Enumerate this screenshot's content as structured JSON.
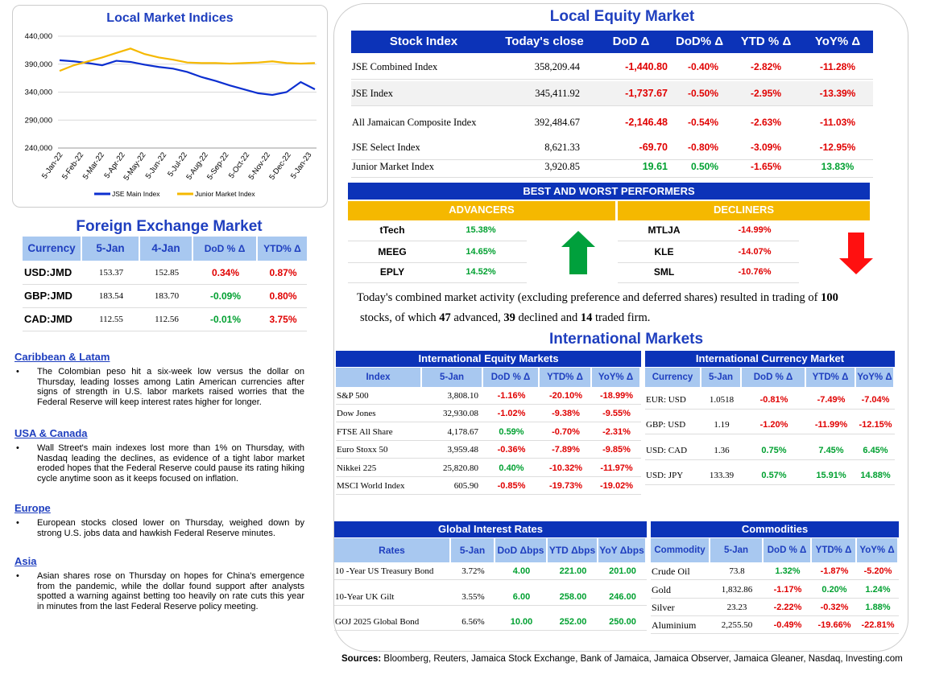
{
  "chart_data": {
    "type": "line",
    "title": "Local Market Indices",
    "x_ticks": [
      "5-Jan-22",
      "5-Feb-22",
      "5-Mar-22",
      "5-Apr-22",
      "5-May-22",
      "5-Jun-22",
      "5-Jul-22",
      "5-Aug-22",
      "5-Sep-22",
      "5-Oct-22",
      "5-Nov-22",
      "5-Dec-22",
      "5-Jan-23"
    ],
    "y_ticks": [
      "440,000",
      "390,000",
      "340,000",
      "290,000",
      "240,000"
    ],
    "ylim": [
      240000,
      440000
    ],
    "grid": true,
    "legend_position": "bottom",
    "series": [
      {
        "name": "JSE Main Index",
        "color": "#0c2fd0",
        "values": [
          397000,
          395000,
          392000,
          388000,
          396000,
          394000,
          389000,
          385000,
          382000,
          376000,
          367000,
          360000,
          352000,
          345000,
          338000,
          335000,
          340000,
          358000,
          345000
        ]
      },
      {
        "name": "Junior Market Index",
        "color": "#f5b800",
        "values": [
          378000,
          388000,
          395000,
          402000,
          410000,
          418000,
          408000,
          402000,
          398000,
          393000,
          392000,
          392000,
          391000,
          392000,
          393000,
          395000,
          392000,
          391000,
          392000
        ]
      }
    ]
  },
  "fx": {
    "title": "Foreign Exchange Market",
    "headers": [
      "Currency",
      "5-Jan",
      "4-Jan",
      "DoD % Δ",
      "YTD% Δ"
    ],
    "rows": [
      {
        "c": "USD:JMD",
        "a": "153.37",
        "b": "152.85",
        "d": "0.34%",
        "y": "0.87%",
        "dc": "red",
        "yc": "red"
      },
      {
        "c": "GBP:JMD",
        "a": "183.54",
        "b": "183.70",
        "d": "-0.09%",
        "y": "0.80%",
        "dc": "green",
        "yc": "red"
      },
      {
        "c": "CAD:JMD",
        "a": "112.55",
        "b": "112.56",
        "d": "-0.01%",
        "y": "3.75%",
        "dc": "green",
        "yc": "red"
      }
    ]
  },
  "news": [
    {
      "h": "Caribbean & Latam",
      "b": "The Colombian peso hit a six-week low versus the dollar on Thursday, leading losses among Latin American currencies after signs of strength in U.S. labor markets raised worries that the Federal Reserve will keep interest rates higher for longer."
    },
    {
      "h": "USA & Canada",
      "b": "Wall Street's main indexes lost more than 1% on Thursday, with Nasdaq leading the declines, as evidence of a tight labor market eroded hopes that the Federal Reserve could pause its rating hiking cycle anytime soon as it keeps focused on inflation."
    },
    {
      "h": "Europe",
      "b": "European stocks closed lower on Thursday, weighed down by strong U.S. jobs data and hawkish Federal Reserve minutes."
    },
    {
      "h": "Asia",
      "b": "Asian shares rose on Thursday on hopes for China's emergence from the pandemic, while the dollar found support after analysts spotted a warning against betting too heavily on rate cuts this year in minutes from the last Federal Reserve policy meeting."
    }
  ],
  "equity": {
    "title": "Local Equity Market",
    "headers": [
      "Stock Index",
      "Today's close",
      "DoD  Δ",
      "DoD% Δ",
      "YTD % Δ",
      "YoY% Δ"
    ],
    "rows": [
      {
        "n": "JSE Combined Index",
        "c": "358,209.44",
        "d": "-1,440.80",
        "p": "-0.40%",
        "y": "-2.82%",
        "yy": "-11.28%",
        "dc": "red"
      },
      {
        "n": "JSE Index",
        "c": "345,411.92",
        "d": "-1,737.67",
        "p": "-0.50%",
        "y": "-2.95%",
        "yy": "-13.39%",
        "dc": "red"
      },
      {
        "n": "All Jamaican Composite Index",
        "c": "392,484.67",
        "d": "-2,146.48",
        "p": "-0.54%",
        "y": "-2.63%",
        "yy": "-11.03%",
        "dc": "red"
      },
      {
        "n": "JSE Select Index",
        "c": "8,621.33",
        "d": "-69.70",
        "p": "-0.80%",
        "y": "-3.09%",
        "yy": "-12.95%",
        "dc": "red"
      },
      {
        "n": "Junior Market Index",
        "c": "3,920.85",
        "d": "19.61",
        "p": "0.50%",
        "y": "-1.65%",
        "yy": "13.83%",
        "dc": "green"
      }
    ]
  },
  "performers": {
    "title": "BEST AND WORST PERFORMERS",
    "adv_label": "ADVANCERS",
    "dec_label": "DECLINERS",
    "advancers": [
      {
        "n": "tTech",
        "v": "15.38%"
      },
      {
        "n": "MEEG",
        "v": "14.65%"
      },
      {
        "n": "EPLY",
        "v": "14.52%"
      }
    ],
    "decliners": [
      {
        "n": "MTLJA",
        "v": "-14.99%"
      },
      {
        "n": "KLE",
        "v": "-14.07%"
      },
      {
        "n": "SML",
        "v": "-10.76%"
      }
    ]
  },
  "summary": {
    "p1": "Today's combined market activity (excluding preference and deferred shares) resulted in trading of ",
    "total": "100",
    "p2": "stocks, of which ",
    "adv": "47",
    "p3": " advanced, ",
    "dec": "39",
    "p4": " declined and ",
    "firm": "14",
    "p5": " traded firm."
  },
  "intl": {
    "title": "International Markets",
    "eq": {
      "title": "International Equity Markets",
      "headers": [
        "Index",
        "5-Jan",
        "DoD % Δ",
        "YTD% Δ",
        "YoY% Δ"
      ],
      "rows": [
        {
          "n": "S&P 500",
          "v": "3,808.10",
          "d": "-1.16%",
          "y": "-20.10%",
          "yy": "-18.99%",
          "dc": "red",
          "yc": "red",
          "yyc": "red"
        },
        {
          "n": "Dow Jones",
          "v": "32,930.08",
          "d": "-1.02%",
          "y": "-9.38%",
          "yy": "-9.55%",
          "dc": "red",
          "yc": "red",
          "yyc": "red"
        },
        {
          "n": "FTSE All Share",
          "v": "4,178.67",
          "d": "0.59%",
          "y": "-0.70%",
          "yy": "-2.31%",
          "dc": "green",
          "yc": "red",
          "yyc": "red"
        },
        {
          "n": "Euro Stoxx 50",
          "v": "3,959.48",
          "d": "-0.36%",
          "y": "-7.89%",
          "yy": "-9.85%",
          "dc": "red",
          "yc": "red",
          "yyc": "red"
        },
        {
          "n": "Nikkei 225",
          "v": "25,820.80",
          "d": "0.40%",
          "y": "-10.32%",
          "yy": "-11.97%",
          "dc": "green",
          "yc": "red",
          "yyc": "red"
        },
        {
          "n": "MSCI World Index",
          "v": "605.90",
          "d": "-0.85%",
          "y": "-19.73%",
          "yy": "-19.02%",
          "dc": "red",
          "yc": "red",
          "yyc": "red"
        }
      ]
    },
    "cur": {
      "title": "International Currency Market",
      "headers": [
        "Currency",
        "5-Jan",
        "DoD % Δ",
        "YTD% Δ",
        "YoY% Δ"
      ],
      "rows": [
        {
          "n": "EUR: USD",
          "v": "1.0518",
          "d": "-0.81%",
          "y": "-7.49%",
          "yy": "-7.04%",
          "dc": "red",
          "yc": "red",
          "yyc": "red"
        },
        {
          "n": "GBP: USD",
          "v": "1.19",
          "d": "-1.20%",
          "y": "-11.99%",
          "yy": "-12.15%",
          "dc": "red",
          "yc": "red",
          "yyc": "red"
        },
        {
          "n": "USD: CAD",
          "v": "1.36",
          "d": "0.75%",
          "y": "7.45%",
          "yy": "6.45%",
          "dc": "green",
          "yc": "green",
          "yyc": "green"
        },
        {
          "n": "USD: JPY",
          "v": "133.39",
          "d": "0.57%",
          "y": "15.91%",
          "yy": "14.88%",
          "dc": "green",
          "yc": "green",
          "yyc": "green"
        }
      ]
    },
    "rates": {
      "title": "Global Interest Rates",
      "headers": [
        "Rates",
        "5-Jan",
        "DoD Δbps",
        "YTD Δbps",
        "YoY Δbps"
      ],
      "rows": [
        {
          "n": "10 -Year US Treasury Bond",
          "v": "3.72%",
          "d": "4.00",
          "y": "221.00",
          "yy": "201.00"
        },
        {
          "n": "10-Year UK Gilt",
          "v": "3.55%",
          "d": "6.00",
          "y": "258.00",
          "yy": "246.00"
        },
        {
          "n": "GOJ 2025 Global Bond",
          "v": "6.56%",
          "d": "10.00",
          "y": "252.00",
          "yy": "250.00"
        }
      ]
    },
    "comm": {
      "title": "Commodities",
      "headers": [
        "Commodity",
        "5-Jan",
        "DoD % Δ",
        "YTD% Δ",
        "YoY% Δ"
      ],
      "rows": [
        {
          "n": "Crude Oil",
          "v": "73.8",
          "d": "1.32%",
          "y": "-1.87%",
          "yy": "-5.20%",
          "dc": "green",
          "yc": "red",
          "yyc": "red"
        },
        {
          "n": "Gold",
          "v": "1,832.86",
          "d": "-1.17%",
          "y": "0.20%",
          "yy": "1.24%",
          "dc": "red",
          "yc": "green",
          "yyc": "green"
        },
        {
          "n": "Silver",
          "v": "23.23",
          "d": "-2.22%",
          "y": "-0.32%",
          "yy": "1.88%",
          "dc": "red",
          "yc": "red",
          "yyc": "green"
        },
        {
          "n": "Aluminium",
          "v": "2,255.50",
          "d": "-0.49%",
          "y": "-19.66%",
          "yy": "-22.81%",
          "dc": "red",
          "yc": "red",
          "yyc": "red"
        }
      ]
    }
  },
  "sources": {
    "label": "Sources:",
    "text": " Bloomberg, Reuters, Jamaica Stock Exchange, Bank of Jamaica, Jamaica Observer, Jamaica Gleaner, Nasdaq, Investing.com"
  }
}
